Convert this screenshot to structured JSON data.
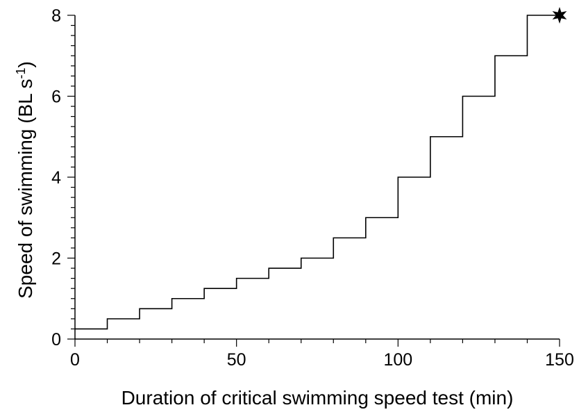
{
  "chart_data": {
    "type": "line",
    "title": "",
    "xlabel": "Duration of critical swimming speed test (min)",
    "ylabel_main": "Speed of swimming (BL s",
    "ylabel_sup": "-1",
    "ylabel_close": ")",
    "xlim": [
      0,
      150
    ],
    "ylim": [
      0,
      8
    ],
    "xticks": [
      0,
      50,
      100,
      150
    ],
    "yticks": [
      0,
      2,
      4,
      6,
      8
    ],
    "x_minor_step": 10,
    "y_minor_step": 0.25,
    "grid": false,
    "step_style": "post",
    "series": [
      {
        "x": [
          0,
          10,
          20,
          30,
          40,
          50,
          60,
          70,
          80,
          90,
          100,
          110,
          120,
          130,
          140,
          150
        ],
        "y": [
          0.25,
          0.5,
          0.75,
          1.0,
          1.25,
          1.5,
          1.75,
          2.0,
          2.5,
          3.0,
          4.0,
          5.0,
          6.0,
          7.0,
          8.0,
          8.0
        ]
      }
    ],
    "end_marker": {
      "x": 150,
      "y": 8,
      "symbol": "six-point-star"
    }
  }
}
